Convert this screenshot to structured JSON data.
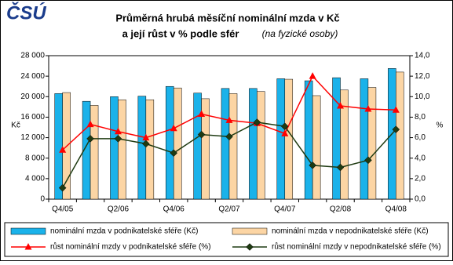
{
  "logo": "ČSÚ",
  "chart_data": {
    "type": "bar-line",
    "title": "Průměrná hrubá měsíční nominální mzda v Kč",
    "title_line2": "a její růst v % podle sfér",
    "subtitle": "(na fyzické osoby)",
    "ylabel": "Kč",
    "y2label": "%",
    "categories": [
      "Q4/05",
      null,
      "Q2/06",
      null,
      "Q4/06",
      null,
      "Q2/07",
      null,
      "Q4/07",
      null,
      "Q2/08",
      null,
      "Q4/08"
    ],
    "ylim": [
      0,
      28000
    ],
    "yticks": [
      0,
      {
        "value": 4000,
        "label": "4 000"
      },
      {
        "value": 8000,
        "label": "8 000"
      },
      {
        "value": 12000,
        "label": "12 000"
      },
      {
        "value": 16000,
        "label": "16 000"
      },
      {
        "value": 20000,
        "label": "20 000"
      },
      {
        "value": 24000,
        "label": "24 000"
      },
      {
        "value": 28000,
        "label": "28 000"
      }
    ],
    "y2lim": [
      0,
      14
    ],
    "y2ticks": [
      {
        "value": 0,
        "label": "0,0"
      },
      {
        "value": 2,
        "label": "2,0"
      },
      {
        "value": 4,
        "label": "4,0"
      },
      {
        "value": 6,
        "label": "6,0"
      },
      {
        "value": 8,
        "label": "8,0"
      },
      {
        "value": 10,
        "label": "10,0"
      },
      {
        "value": 12,
        "label": "12,0"
      },
      {
        "value": 14,
        "label": "14,0"
      }
    ],
    "series": [
      {
        "name": "nominální mzda v podnikatelské sféře (Kč)",
        "kind": "bar",
        "color": "#1ab2ea",
        "values": [
          20600,
          19100,
          20000,
          20100,
          22000,
          20700,
          21600,
          21600,
          23500,
          23100,
          23700,
          23500,
          25500
        ]
      },
      {
        "name": "nominální mzda v nepodnikatelské sféře (Kč)",
        "kind": "bar",
        "color": "#fcd5a4",
        "values": [
          20800,
          18300,
          19400,
          19400,
          21700,
          19600,
          20600,
          21000,
          23400,
          20200,
          21300,
          21800,
          24800
        ]
      },
      {
        "name": "růst nominální mzdy v podnikatelské sféře (%)",
        "kind": "line",
        "axis": "y2",
        "color": "#ff0000",
        "marker": "triangle",
        "values": [
          4.8,
          7.3,
          6.6,
          6.0,
          6.9,
          8.3,
          7.7,
          7.4,
          6.4,
          12.0,
          9.1,
          8.8,
          8.7
        ]
      },
      {
        "name": "růst nominální mzdy v nepodnikatelské sféře (%)",
        "kind": "line",
        "axis": "y2",
        "color": "#1f3b12",
        "marker": "diamond",
        "values": [
          1.1,
          5.9,
          5.9,
          5.4,
          4.5,
          6.3,
          6.1,
          7.5,
          7.1,
          3.3,
          3.1,
          3.8,
          6.8
        ]
      }
    ]
  }
}
